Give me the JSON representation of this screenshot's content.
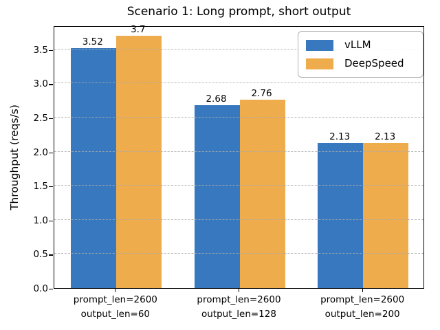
{
  "chart_data": {
    "type": "bar",
    "title": "Scenario 1: Long prompt, short output",
    "ylabel": "Throughput (reqs/s)",
    "xlabel": "",
    "categories": [
      {
        "line1": "prompt_len=2600",
        "line2": "output_len=60"
      },
      {
        "line1": "prompt_len=2600",
        "line2": "output_len=128"
      },
      {
        "line1": "prompt_len=2600",
        "line2": "output_len=200"
      }
    ],
    "series": [
      {
        "name": "vLLM",
        "color": "#3778bf",
        "values": [
          3.52,
          2.68,
          2.13
        ]
      },
      {
        "name": "DeepSpeed",
        "color": "#eeac4d",
        "values": [
          3.7,
          2.76,
          2.13
        ]
      }
    ],
    "bar_value_labels": [
      [
        "3.52",
        "2.68",
        "2.13"
      ],
      [
        "3.7",
        "2.76",
        "2.13"
      ]
    ],
    "yticks": [
      0.0,
      0.5,
      1.0,
      1.5,
      2.0,
      2.5,
      3.0,
      3.5
    ],
    "ytick_labels": [
      "0.0",
      "0.5",
      "1.0",
      "1.5",
      "2.0",
      "2.5",
      "3.0",
      "3.5"
    ],
    "ylim": [
      0,
      3.85
    ],
    "grid": true,
    "grid_style": "dashed",
    "grid_color": "#ababab",
    "spine_color": "#000000",
    "legend": {
      "position": "upper right"
    }
  }
}
